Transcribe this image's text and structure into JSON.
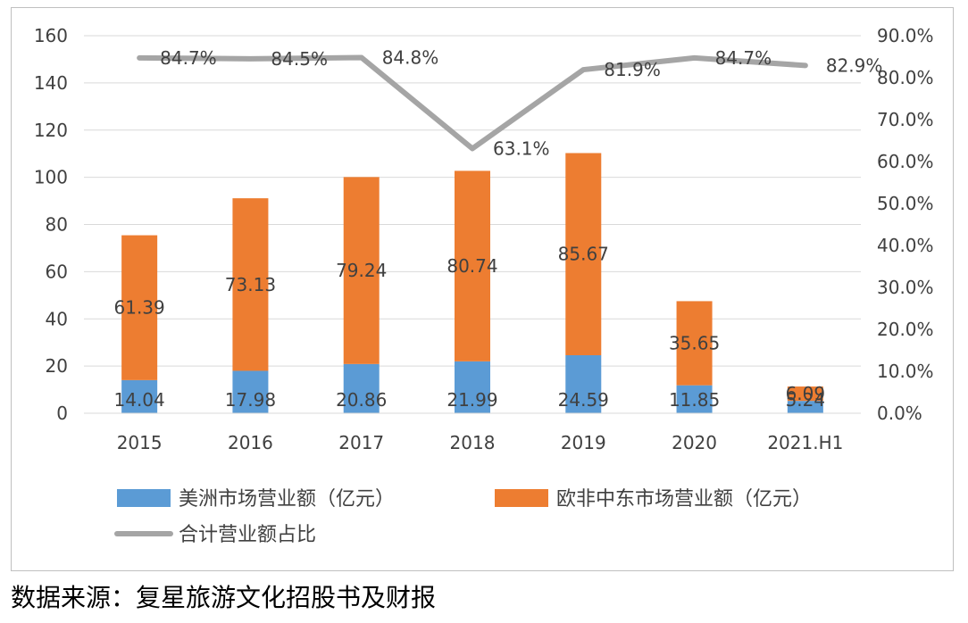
{
  "chart_data": {
    "type": "bar",
    "stacked": true,
    "categories": [
      "2015",
      "2016",
      "2017",
      "2018",
      "2019",
      "2020",
      "2021.H1"
    ],
    "series": [
      {
        "name": "美洲市场营业额（亿元）",
        "type": "bar",
        "axis": "left",
        "color": "#5b9bd5",
        "values": [
          14.04,
          17.98,
          20.86,
          21.99,
          24.59,
          11.85,
          5.24
        ],
        "labels": [
          "14.04",
          "17.98",
          "20.86",
          "21.99",
          "24.59",
          "11.85",
          "5.24"
        ]
      },
      {
        "name": "欧非中东市场营业额（亿元）",
        "type": "bar",
        "axis": "left",
        "color": "#ed7d31",
        "values": [
          61.39,
          73.13,
          79.24,
          80.74,
          85.67,
          35.65,
          6.09
        ],
        "labels": [
          "61.39",
          "73.13",
          "79.24",
          "80.74",
          "85.67",
          "35.65",
          "6.09"
        ]
      },
      {
        "name": "合计营业额占比",
        "type": "line",
        "axis": "right",
        "color": "#a5a5a5",
        "values": [
          84.7,
          84.5,
          84.8,
          63.1,
          81.9,
          84.7,
          82.9
        ],
        "labels": [
          "84.7%",
          "84.5%",
          "84.8%",
          "63.1%",
          "81.9%",
          "84.7%",
          "82.9%"
        ]
      }
    ],
    "y_left": {
      "min": 0,
      "max": 160,
      "step": 20,
      "ticks": [
        "0",
        "20",
        "40",
        "60",
        "80",
        "100",
        "120",
        "140",
        "160"
      ]
    },
    "y_right": {
      "min": 0,
      "max": 90,
      "step": 10,
      "ticks": [
        "0.0%",
        "10.0%",
        "20.0%",
        "30.0%",
        "40.0%",
        "50.0%",
        "60.0%",
        "70.0%",
        "80.0%",
        "90.0%"
      ]
    },
    "grid": true,
    "legend_position": "bottom"
  },
  "source": "数据来源：复星旅游文化招股书及财报"
}
